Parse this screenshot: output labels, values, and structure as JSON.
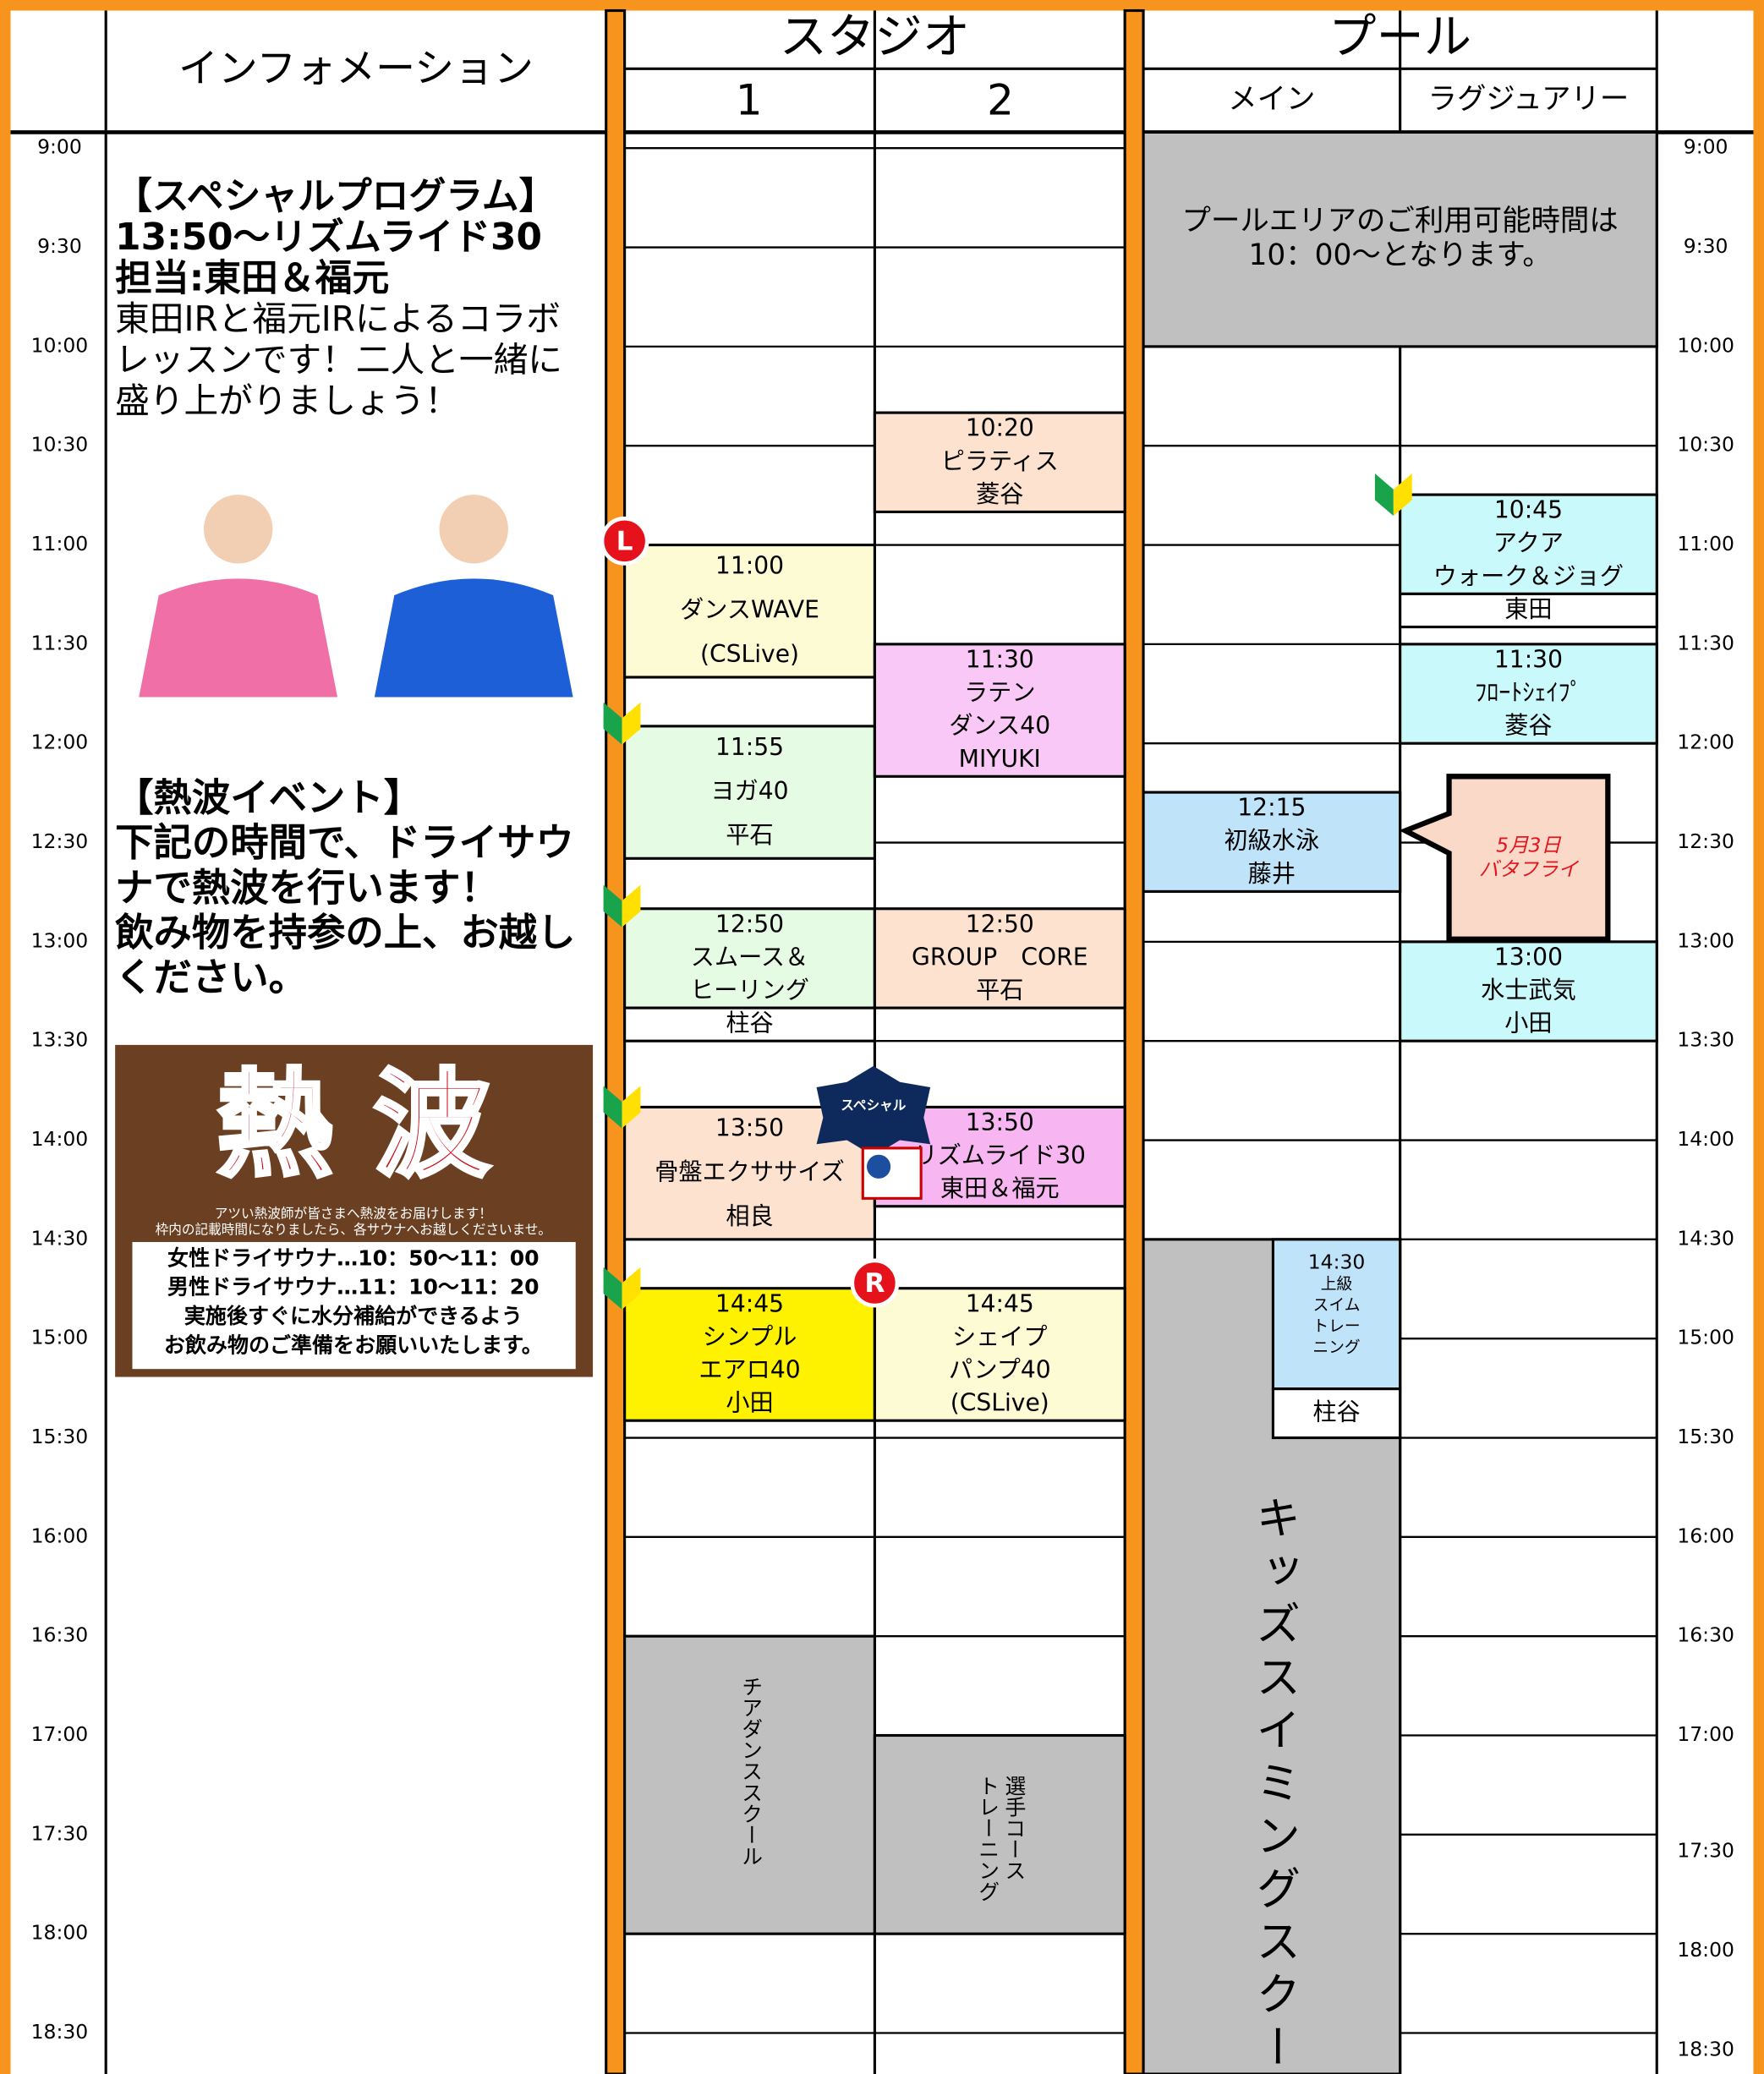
{
  "header": {
    "info": "インフォメーション",
    "studio": "スタジオ",
    "studio_cols": [
      "1",
      "2"
    ],
    "pool": "プール",
    "pool_cols": [
      "メイン",
      "ラグジュアリー"
    ]
  },
  "times_left": [
    "9:00",
    "9:30",
    "10:00",
    "10:30",
    "11:00",
    "11:30",
    "12:00",
    "12:30",
    "13:00",
    "13:30",
    "14:00",
    "14:30",
    "15:00",
    "15:30",
    "16:00",
    "16:30",
    "17:00",
    "17:30",
    "18:00",
    "18:30"
  ],
  "times_right": [
    "9:00",
    "9:30",
    "10:00",
    "10:30",
    "11:00",
    "11:30",
    "12:00",
    "12:30",
    "13:00",
    "13:30",
    "14:00",
    "14:30",
    "15:00",
    "15:30",
    "16:00",
    "16:30",
    "17:00",
    "17:30",
    "18:00",
    "18:30"
  ],
  "info": {
    "special": [
      "【スペシャルプログラム】",
      "13:50～リズムライド30",
      "担当:東田＆福元",
      "東田IRと福元IRによるコラボ",
      "レッスンです！二人と一緒に",
      "盛り上がりましょう！"
    ],
    "event": [
      "【熱波イベント】",
      "下記の時間で、ドライサウ",
      "ナで熱波を行います！",
      "飲み物を持参の上、お越し",
      "ください。"
    ],
    "poster": {
      "title": "熱 波",
      "notes": [
        "アツい熱波師が皆さまへ熱波をお届けします！",
        "枠内の記載時間になりましたら、各サウナへお越しくださいませ。"
      ],
      "schedule": [
        "女性ドライサウナ…10：50～11：00",
        "男性ドライサウナ…11：10～11：20",
        "実施後すぐに水分補給ができるよう",
        "お飲み物のご準備をお願いいたします。"
      ]
    }
  },
  "events": [
    {
      "lines": [
        "11:00",
        "ダンスWAVE",
        "(CSLive)"
      ],
      "color": "#fdfbd4"
    },
    {
      "lines": [
        "11:55",
        "ヨガ40",
        "平石"
      ],
      "color": "#e6fbe3"
    },
    {
      "lines": [
        "12:50",
        "スムース＆",
        "ヒーリング"
      ],
      "color": "#e6fbe3"
    },
    {
      "lines": [
        "柱谷"
      ],
      "color": "#ffffff"
    },
    {
      "lines": [
        "13:50",
        "骨盤エクササイズ",
        "相良"
      ],
      "color": "#fde3cf"
    },
    {
      "lines": [
        "14:45",
        "シンプル",
        "エアロ40",
        "小田"
      ],
      "color": "#fff200"
    },
    {
      "lines": [
        "チアダンススクール"
      ],
      "color": "#c0c0c0"
    },
    {
      "lines": [
        "10:20",
        "ピラティス",
        "菱谷"
      ],
      "color": "#fde3cf"
    },
    {
      "lines": [
        "11:30",
        "ラテン",
        "ダンス40",
        "MIYUKI"
      ],
      "color": "#f9c8f6"
    },
    {
      "lines": [
        "12:50",
        "GROUP　CORE",
        "平石"
      ],
      "color": "#fde3cf"
    },
    {
      "lines": [
        "13:50",
        "リズムライド30",
        "東田＆福元"
      ],
      "color": "#f7b5f1"
    },
    {
      "lines": [
        "14:45",
        "シェイプ",
        "パンプ40",
        "(CSLive)"
      ],
      "color": "#fdfbd4"
    },
    {
      "lines": [
        "選手コース",
        "トレーニング"
      ],
      "color": "#c0c0c0"
    },
    {
      "lines": [
        "プールエリアのご利用可能時間は",
        "10：00～となります。"
      ],
      "color": "#c0c0c0"
    },
    {
      "lines": [
        "12:15",
        "初級水泳",
        "藤井"
      ],
      "color": "#bfe4fa"
    },
    {
      "lines": [
        "10:45",
        "アクア",
        "ウォーク＆ジョグ"
      ],
      "color": "#c9f9fb"
    },
    {
      "lines": [
        "東田"
      ],
      "color": "#ffffff"
    },
    {
      "lines": [
        "11:30",
        "ﾌﾛｰﾄｼｪｲﾌﾟ",
        "菱谷"
      ],
      "color": "#c9f9fb"
    },
    {
      "lines": [
        "13:00",
        "水士武気",
        "小田"
      ],
      "color": "#c9f9fb"
    },
    {
      "lines": [
        "キッズスイミングスクール"
      ],
      "color": "#c0c0c0"
    },
    {
      "lines": [
        "14:30",
        "上級",
        "スイム",
        "トレー",
        "ニング"
      ],
      "color": "#bfe4fa"
    },
    {
      "lines": [
        "柱谷"
      ],
      "color": "#ffffff"
    }
  ],
  "callout": [
    "5月3日",
    "バタフライ"
  ],
  "markers": {
    "left": "L",
    "right": "R",
    "special": "スペシャル"
  }
}
